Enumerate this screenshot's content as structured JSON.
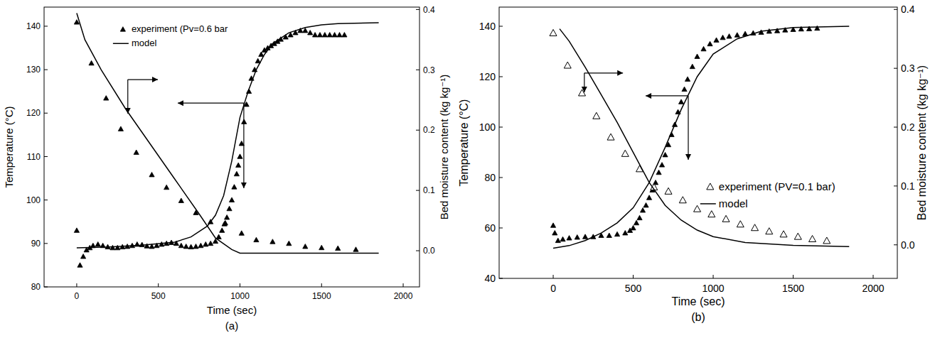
{
  "chart_data": [
    {
      "type": "combo",
      "title": "(a)",
      "xlabel": "Time (sec)",
      "ylabel": "Temperature (°C)",
      "y2label": "Bed moisture content (kg kg⁻¹)",
      "xlim": [
        -200,
        2100
      ],
      "xticks": [
        0,
        500,
        1000,
        1500,
        2000
      ],
      "ylim": [
        80,
        144.4
      ],
      "yticks": [
        80,
        90,
        100,
        110,
        120,
        130,
        140
      ],
      "y2lim": [
        -0.06,
        0.404
      ],
      "y2ticks": [
        {
          "value": 0,
          "label": "0.0"
        },
        0.1,
        0.2,
        0.3,
        0.4
      ],
      "legend": "upper left",
      "grid": false,
      "series": [
        {
          "name": "experiment (Pv=0.6 bar",
          "type": "scatter",
          "marker": "triangle",
          "color": "#000000",
          "x": [
            0,
            20,
            40,
            60,
            80,
            100,
            130,
            160,
            190,
            220,
            250,
            280,
            310,
            340,
            370,
            400,
            430,
            460,
            490,
            520,
            550,
            580,
            610,
            640,
            670,
            700,
            730,
            760,
            790,
            820,
            850,
            870,
            890,
            905,
            920,
            935,
            950,
            965,
            980,
            990,
            1000,
            1010,
            1025,
            1040,
            1055,
            1070,
            1090,
            1110,
            1130,
            1150,
            1170,
            1190,
            1210,
            1230,
            1250,
            1280,
            1310,
            1340,
            1370,
            1400,
            1430,
            1460,
            1490,
            1520,
            1550,
            1580,
            1610,
            1640
          ],
          "values": [
            93,
            85,
            87,
            88.5,
            89,
            89.5,
            89.8,
            89.5,
            89.2,
            89,
            89,
            89.2,
            89.3,
            89.5,
            89.8,
            89.7,
            89.4,
            89.3,
            89.5,
            89.8,
            90,
            90.2,
            90,
            89.5,
            89.3,
            89.2,
            89.3,
            89.5,
            89.8,
            90,
            90.5,
            91.5,
            93,
            94.5,
            96,
            98,
            100,
            103,
            106,
            108,
            110,
            113,
            118,
            122,
            125,
            128,
            130,
            132,
            133.5,
            134.5,
            135,
            135.5,
            136,
            136.5,
            137,
            137.5,
            138,
            138.5,
            139,
            139,
            138.5,
            138,
            138,
            138,
            138,
            138,
            138,
            138
          ]
        },
        {
          "name": "model",
          "type": "line",
          "line_style": "solid",
          "color": "#000000",
          "x": [
            0,
            200,
            400,
            600,
            700,
            800,
            850,
            900,
            950,
            1000,
            1050,
            1100,
            1150,
            1200,
            1300,
            1400,
            1500,
            1600,
            1700,
            1850
          ],
          "values": [
            89,
            89.2,
            89.6,
            90.3,
            91.5,
            94,
            96.5,
            101,
            109,
            119,
            125,
            130,
            133.5,
            136,
            138.5,
            139.7,
            140.3,
            140.6,
            140.7,
            140.8
          ]
        },
        {
          "type": "scatter",
          "marker": "triangle",
          "color": "#000000",
          "axis": "y2",
          "x": [
            0,
            90,
            180,
            270,
            365,
            460,
            550,
            640,
            730,
            820,
            910,
            1010,
            1100,
            1200,
            1300,
            1400,
            1500,
            1600,
            1710
          ],
          "values": [
            0.379,
            0.311,
            0.253,
            0.202,
            0.163,
            0.126,
            0.105,
            0.083,
            0.063,
            0.048,
            0.046,
            0.029,
            0.018,
            0.015,
            0.012,
            0.007,
            0.005,
            0.004,
            0.002
          ]
        },
        {
          "type": "line",
          "line_style": "solid",
          "color": "#000000",
          "axis": "y2",
          "x": [
            0,
            50,
            150,
            300,
            450,
            600,
            750,
            850,
            950,
            1000,
            1200,
            1500,
            1850
          ],
          "values": [
            0.394,
            0.35,
            0.3,
            0.235,
            0.177,
            0.119,
            0.061,
            0.021,
            0.002,
            -0.004,
            -0.004,
            -0.004,
            -0.004
          ]
        }
      ]
    },
    {
      "type": "combo",
      "title": "(b)",
      "xlabel": "Time (sec)",
      "ylabel": "Temperature (°C)",
      "y2label": "Bed moisture content (kg kg⁻¹)",
      "xlim": [
        -338,
        2151
      ],
      "xticks": [
        0,
        500,
        1000,
        1500,
        2000
      ],
      "ylim": [
        40,
        147.6
      ],
      "yticks": [
        40,
        60,
        80,
        100,
        120,
        140
      ],
      "y2lim": [
        -0.057,
        0.404
      ],
      "y2ticks": [
        {
          "value": 0,
          "label": "0.0"
        },
        0.1,
        0.2,
        0.3,
        0.4
      ],
      "legend": "right",
      "grid": false,
      "series": [
        {
          "type": "scatter",
          "marker": "triangle",
          "color": "#000000",
          "x": [
            0,
            10,
            30,
            60,
            100,
            150,
            200,
            250,
            300,
            350,
            400,
            450,
            480,
            500,
            520,
            540,
            560,
            580,
            600,
            620,
            640,
            660,
            680,
            700,
            720,
            740,
            760,
            780,
            800,
            820,
            840,
            870,
            900,
            940,
            980,
            1020,
            1060,
            1100,
            1150,
            1200,
            1250,
            1300,
            1350,
            1400,
            1450,
            1500,
            1550,
            1600,
            1650
          ],
          "values": [
            61,
            58,
            55,
            55.5,
            56,
            56.3,
            56.5,
            56.5,
            57,
            57,
            57.5,
            58,
            59,
            60,
            62,
            64,
            67,
            69,
            72,
            75,
            78,
            82,
            85,
            89,
            93,
            97,
            101,
            106,
            110,
            115,
            119,
            124,
            128,
            131,
            133,
            134.5,
            135.5,
            136,
            136.5,
            137,
            137.3,
            137.6,
            138,
            138.2,
            138.5,
            138.7,
            138.9,
            139,
            139.2
          ]
        },
        {
          "type": "line",
          "line_style": "solid",
          "color": "#000000",
          "x": [
            0,
            100,
            200,
            300,
            400,
            500,
            600,
            700,
            800,
            900,
            1000,
            1150,
            1300,
            1500,
            1850
          ],
          "values": [
            52,
            53,
            55,
            58,
            62,
            68,
            78,
            92,
            107,
            120,
            129,
            135,
            138,
            139.5,
            140
          ]
        },
        {
          "name": "experiment (PV=0.1 bar)",
          "type": "scatter",
          "marker": "triangle-open",
          "color": "#000000",
          "axis": "y2",
          "x": [
            0,
            90,
            180,
            270,
            360,
            450,
            540,
            630,
            720,
            810,
            900,
            990,
            1080,
            1170,
            1260,
            1350,
            1440,
            1530,
            1620,
            1710
          ],
          "values": [
            0.36,
            0.305,
            0.258,
            0.219,
            0.183,
            0.155,
            0.129,
            0.098,
            0.091,
            0.076,
            0.061,
            0.052,
            0.044,
            0.035,
            0.029,
            0.023,
            0.018,
            0.014,
            0.01,
            0.007
          ]
        },
        {
          "name": "model",
          "type": "line",
          "line_style": "solid",
          "color": "#000000",
          "axis": "y2",
          "x": [
            40,
            100,
            200,
            300,
            400,
            500,
            600,
            700,
            800,
            900,
            1000,
            1200,
            1500,
            1850
          ],
          "values": [
            0.367,
            0.346,
            0.302,
            0.255,
            0.208,
            0.157,
            0.106,
            0.067,
            0.042,
            0.025,
            0.014,
            0.004,
            -0.001,
            -0.003
          ]
        }
      ]
    }
  ]
}
